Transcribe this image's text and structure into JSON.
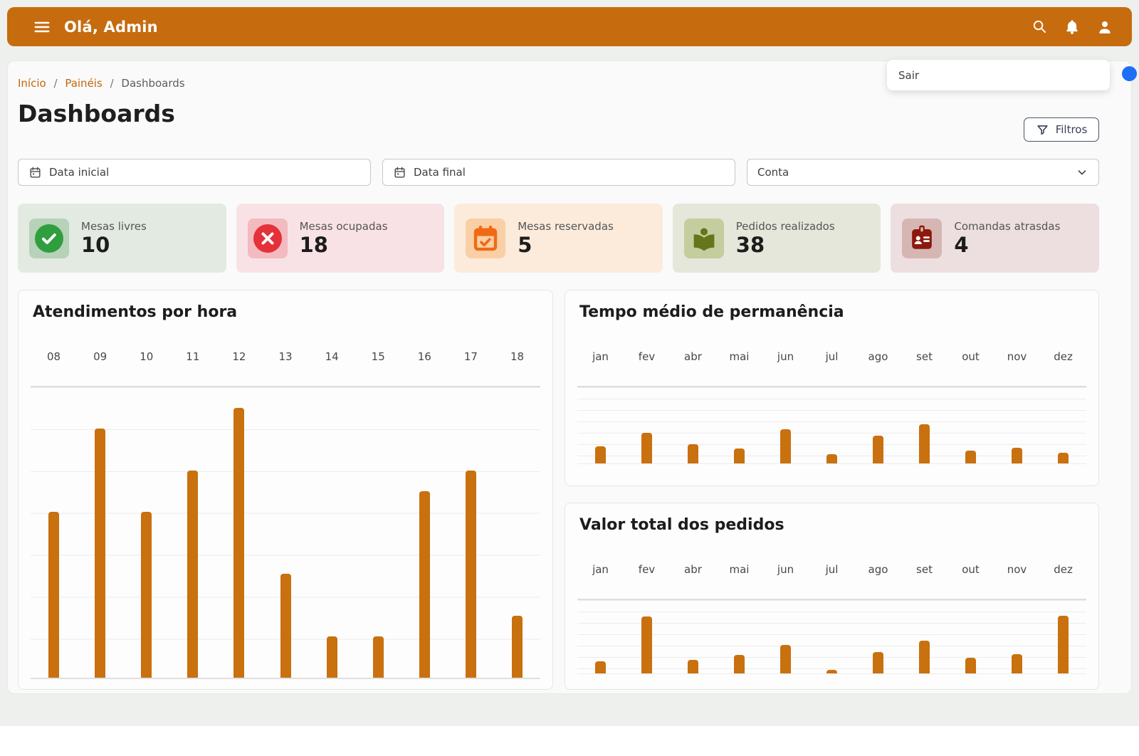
{
  "app_bar": {
    "title": "Olá, Admin"
  },
  "user_menu": {
    "logout_label": "Sair"
  },
  "breadcrumb": {
    "separator": "/",
    "items": [
      {
        "label": "Início"
      },
      {
        "label": "Painéis"
      },
      {
        "label": "Dashboards"
      }
    ]
  },
  "page": {
    "title": "Dashboards"
  },
  "filters": {
    "button_label": "Filtros",
    "date_start_placeholder": "Data inicial",
    "date_end_placeholder": "Data final",
    "account_placeholder": "Conta"
  },
  "stat_cards": [
    {
      "label": "Mesas livres",
      "value": "10",
      "icon": "check-circle-icon",
      "bg": "#e2eae2",
      "icon_bg": "#b7d2b8",
      "icon_color": "#2f9e3f"
    },
    {
      "label": "Mesas ocupadas",
      "value": "18",
      "icon": "x-circle-icon",
      "bg": "#f9e2e5",
      "icon_bg": "#f3bac0",
      "icon_color": "#e4313a"
    },
    {
      "label": "Mesas reservadas",
      "value": "5",
      "icon": "calendar-check-icon",
      "bg": "#fcebdb",
      "icon_bg": "#f9cfa5",
      "icon_color": "#f06a13"
    },
    {
      "label": "Pedidos realizados",
      "value": "38",
      "icon": "library-icon",
      "bg": "#e5e7da",
      "icon_bg": "#c4cd9e",
      "icon_color": "#66741a"
    },
    {
      "label": "Comandas atrasdas",
      "value": "4",
      "icon": "badge-icon",
      "bg": "#eddfdf",
      "icon_bg": "#d6b6b3",
      "icon_color": "#8c190d"
    }
  ],
  "chart_data": [
    {
      "type": "bar",
      "title": "Atendimentos por hora",
      "categories": [
        "08",
        "09",
        "10",
        "11",
        "12",
        "13",
        "14",
        "15",
        "16",
        "17",
        "18"
      ],
      "values": [
        8,
        12,
        8,
        10,
        13,
        5,
        2,
        2,
        9,
        10,
        3
      ],
      "ylim": [
        0,
        14
      ],
      "xlabel": "",
      "ylabel": "",
      "grid": true,
      "xlabels_position": "top",
      "bar_color": "#c9700f"
    },
    {
      "type": "bar",
      "title": "Tempo médio de permanência",
      "categories": [
        "jan",
        "fev",
        "abr",
        "mai",
        "jun",
        "jul",
        "ago",
        "set",
        "out",
        "nov",
        "dez"
      ],
      "values": [
        24,
        42,
        27,
        21,
        47,
        13,
        38,
        54,
        18,
        22,
        15
      ],
      "ylim": [
        0,
        105
      ],
      "xlabel": "",
      "ylabel": "",
      "grid": true,
      "xlabels_position": "top",
      "bar_color": "#c9700f"
    },
    {
      "type": "bar",
      "title": "Valor total dos pedidos",
      "categories": [
        "jan",
        "fev",
        "abr",
        "mai",
        "jun",
        "jul",
        "ago",
        "set",
        "out",
        "nov",
        "dez"
      ],
      "values": [
        17,
        82,
        19,
        27,
        41,
        5,
        31,
        47,
        22,
        28,
        83
      ],
      "ylim": [
        0,
        105
      ],
      "xlabel": "",
      "ylabel": "",
      "grid": true,
      "xlabels_position": "top",
      "bar_color": "#c9700f"
    }
  ],
  "colors": {
    "app_bar_orange": "#c66c0f",
    "bar_orange": "#c9700f",
    "breadcrumb_link_orange": "#c1660b",
    "cursor_blue": "#1f6ef6",
    "page_background": "#eef0ee",
    "panel_background": "#fafafa"
  }
}
